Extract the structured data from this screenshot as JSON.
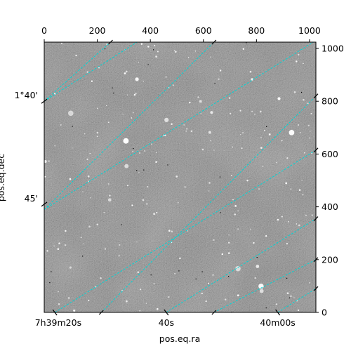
{
  "chart_data": {
    "type": "image",
    "xlabel": "pos.eq.ra",
    "ylabel": "pos.eq.dec",
    "xlim": [
      0,
      1024
    ],
    "ylim": [
      0,
      1024
    ],
    "pixel_ticks": {
      "bottom_axis_labels_at_top": [
        0,
        200,
        400,
        600,
        800,
        1000
      ],
      "right_axis": [
        0,
        200,
        400,
        600,
        800,
        1000
      ]
    },
    "ra_ticks": [
      {
        "label": "7h39m20s",
        "image_x": 40
      },
      {
        "label": "40s",
        "image_x": 460
      },
      {
        "label": "40m00s",
        "image_x": 880
      }
    ],
    "dec_ticks": [
      {
        "label": "1°40'",
        "image_y": 800
      },
      {
        "label": "45'",
        "image_y": 410
      }
    ],
    "grid": {
      "color": "#00d5d5",
      "style": "dashed",
      "ra_lines": [
        [
          [
            40,
            0
          ],
          [
            1024,
            615
          ]
        ],
        [
          [
            460,
            0
          ],
          [
            1024,
            355
          ]
        ],
        [
          [
            880,
            0
          ],
          [
            1024,
            90
          ]
        ],
        [
          [
            0,
            390
          ],
          [
            1024,
            1030
          ]
        ],
        [
          [
            0,
            800
          ],
          [
            350,
            1024
          ]
        ]
      ],
      "dec_lines": [
        [
          [
            0,
            800
          ],
          [
            250,
            1024
          ]
        ],
        [
          [
            0,
            390
          ],
          [
            640,
            1024
          ]
        ],
        [
          [
            215,
            0
          ],
          [
            1024,
            820
          ]
        ],
        [
          [
            640,
            0
          ],
          [
            1024,
            200
          ]
        ]
      ]
    },
    "image": {
      "colormap": "gray",
      "background": "#777777"
    }
  }
}
